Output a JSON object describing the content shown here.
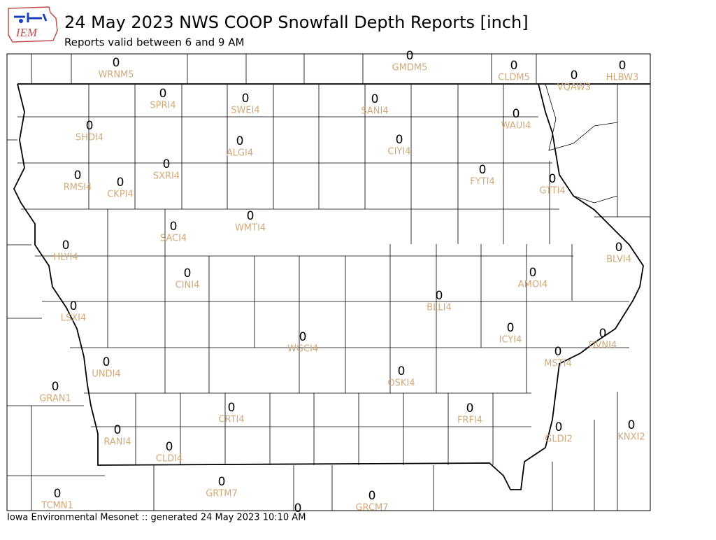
{
  "header": {
    "logo_text": "IEM",
    "title": "24 May 2023 NWS COOP Snowfall Depth Reports [inch]",
    "subtitle": "Reports valid between 6 and 9 AM"
  },
  "stations": [
    {
      "id": "WRNM5",
      "value": 0
    },
    {
      "id": "GMDM5",
      "value": 0
    },
    {
      "id": "CLDM5",
      "value": 0
    },
    {
      "id": "VQAW3",
      "value": 0
    },
    {
      "id": "HLBW3",
      "value": 0
    },
    {
      "id": "SPRI4",
      "value": 0
    },
    {
      "id": "SWEI4",
      "value": 0
    },
    {
      "id": "SANI4",
      "value": 0
    },
    {
      "id": "WAUI4",
      "value": 0
    },
    {
      "id": "SHDI4",
      "value": 0
    },
    {
      "id": "ALGI4",
      "value": 0
    },
    {
      "id": "CIYI4",
      "value": 0
    },
    {
      "id": "FYTI4",
      "value": 0
    },
    {
      "id": "GTTI4",
      "value": 0
    },
    {
      "id": "RMSI4",
      "value": 0
    },
    {
      "id": "CKPI4",
      "value": 0
    },
    {
      "id": "SXRI4",
      "value": 0
    },
    {
      "id": "WMTI4",
      "value": 0
    },
    {
      "id": "SACI4",
      "value": 0
    },
    {
      "id": "HLYI4",
      "value": 0
    },
    {
      "id": "BLVI4",
      "value": 0
    },
    {
      "id": "CINI4",
      "value": 0
    },
    {
      "id": "AMOI4",
      "value": 0
    },
    {
      "id": "BLLI4",
      "value": 0
    },
    {
      "id": "LSXI4",
      "value": 0
    },
    {
      "id": "ICYI4",
      "value": 0
    },
    {
      "id": "DVNI4",
      "value": 0
    },
    {
      "id": "WGCI4",
      "value": 0
    },
    {
      "id": "MSTI4",
      "value": 0
    },
    {
      "id": "UNDI4",
      "value": 0
    },
    {
      "id": "OSKI4",
      "value": 0
    },
    {
      "id": "GRAN1",
      "value": 0
    },
    {
      "id": "CRTI4",
      "value": 0
    },
    {
      "id": "FRFI4",
      "value": 0
    },
    {
      "id": "KNXI2",
      "value": 0
    },
    {
      "id": "RANI4",
      "value": 0
    },
    {
      "id": "GLDI2",
      "value": 0
    },
    {
      "id": "CLDI4",
      "value": 0
    },
    {
      "id": "GRTM7",
      "value": 0
    },
    {
      "id": "TCMN1",
      "value": 0
    },
    {
      "id": "GRCM7",
      "value": 0
    },
    {
      "id": null,
      "value": 0
    }
  ],
  "footer": "Iowa Environmental Mesonet :: generated 24 May 2023 10:10 AM"
}
